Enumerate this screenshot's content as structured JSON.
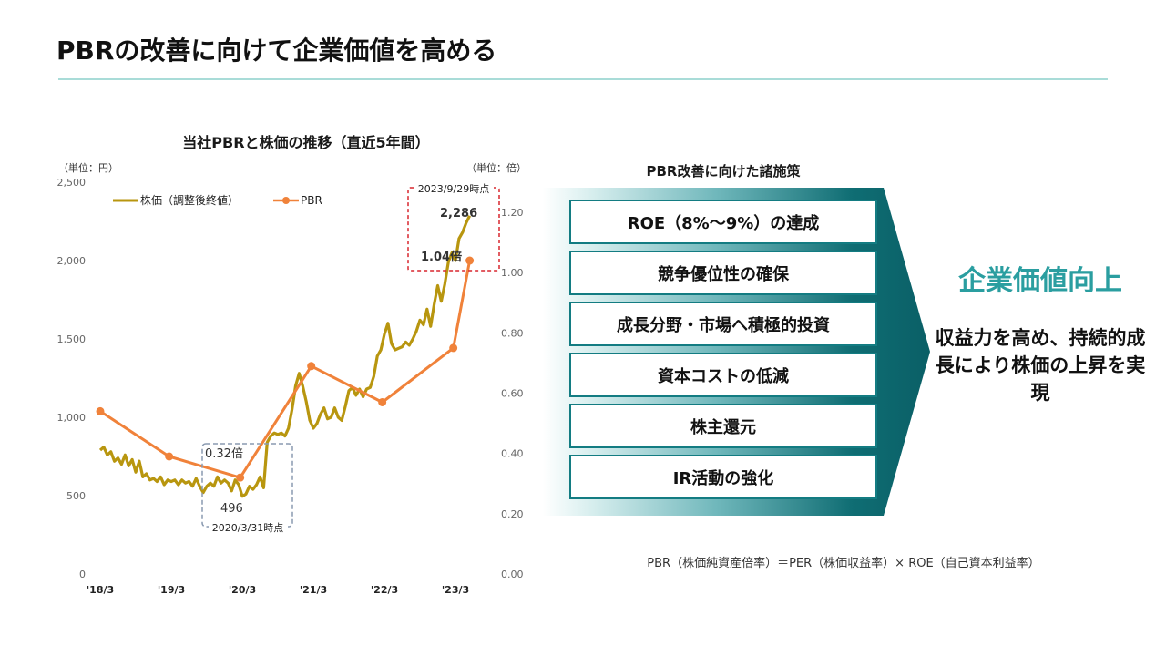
{
  "page": {
    "title": "PBRの改善に向けて企業価値を高める"
  },
  "chart_data": {
    "type": "line",
    "title": "当社PBRと株価の推移（直近5年間）",
    "y_unit_left": "（単位：円）",
    "y_unit_right": "（単位：倍）",
    "y_left": {
      "range": [
        0,
        2500
      ],
      "ticks": [
        0,
        500,
        1000,
        1500,
        2000,
        2500
      ],
      "tick_labels": [
        "0",
        "500",
        "1,000",
        "1,500",
        "2,000",
        "2,500"
      ]
    },
    "y_right": {
      "range": [
        0,
        1.3
      ],
      "ticks": [
        0,
        0.2,
        0.4,
        0.6,
        0.8,
        1.0,
        1.2
      ],
      "tick_labels": [
        "0.00",
        "0.20",
        "0.40",
        "0.60",
        "0.80",
        "1.00",
        "1.20"
      ]
    },
    "x_ticks": [
      {
        "label": "'18/3",
        "t": 0
      },
      {
        "label": "'19/3",
        "t": 1
      },
      {
        "label": "'20/3",
        "t": 2
      },
      {
        "label": "'21/3",
        "t": 3
      },
      {
        "label": "'22/3",
        "t": 4
      },
      {
        "label": "'23/3",
        "t": 5
      }
    ],
    "series": [
      {
        "name": "株価（調整後終値）",
        "color": "#b8960f",
        "axis": "left",
        "points": [
          [
            0.0,
            790
          ],
          [
            0.05,
            810
          ],
          [
            0.1,
            760
          ],
          [
            0.15,
            780
          ],
          [
            0.2,
            720
          ],
          [
            0.25,
            740
          ],
          [
            0.3,
            700
          ],
          [
            0.35,
            760
          ],
          [
            0.4,
            690
          ],
          [
            0.45,
            730
          ],
          [
            0.5,
            650
          ],
          [
            0.55,
            720
          ],
          [
            0.6,
            620
          ],
          [
            0.65,
            640
          ],
          [
            0.7,
            600
          ],
          [
            0.75,
            610
          ],
          [
            0.8,
            590
          ],
          [
            0.85,
            620
          ],
          [
            0.9,
            570
          ],
          [
            0.95,
            600
          ],
          [
            1.0,
            590
          ],
          [
            1.05,
            600
          ],
          [
            1.1,
            570
          ],
          [
            1.15,
            600
          ],
          [
            1.2,
            580
          ],
          [
            1.25,
            590
          ],
          [
            1.3,
            560
          ],
          [
            1.35,
            610
          ],
          [
            1.4,
            560
          ],
          [
            1.45,
            520
          ],
          [
            1.5,
            560
          ],
          [
            1.55,
            580
          ],
          [
            1.6,
            560
          ],
          [
            1.65,
            620
          ],
          [
            1.7,
            580
          ],
          [
            1.75,
            600
          ],
          [
            1.8,
            580
          ],
          [
            1.85,
            530
          ],
          [
            1.9,
            600
          ],
          [
            1.95,
            570
          ],
          [
            2.0,
            496
          ],
          [
            2.05,
            510
          ],
          [
            2.1,
            560
          ],
          [
            2.15,
            540
          ],
          [
            2.2,
            570
          ],
          [
            2.25,
            620
          ],
          [
            2.3,
            550
          ],
          [
            2.35,
            840
          ],
          [
            2.4,
            880
          ],
          [
            2.45,
            900
          ],
          [
            2.5,
            890
          ],
          [
            2.55,
            900
          ],
          [
            2.6,
            880
          ],
          [
            2.65,
            930
          ],
          [
            2.7,
            1050
          ],
          [
            2.75,
            1200
          ],
          [
            2.8,
            1280
          ],
          [
            2.85,
            1200
          ],
          [
            2.9,
            1100
          ],
          [
            2.95,
            980
          ],
          [
            3.0,
            930
          ],
          [
            3.05,
            960
          ],
          [
            3.1,
            1020
          ],
          [
            3.15,
            1060
          ],
          [
            3.2,
            990
          ],
          [
            3.25,
            1000
          ],
          [
            3.3,
            1060
          ],
          [
            3.35,
            1000
          ],
          [
            3.4,
            980
          ],
          [
            3.45,
            1070
          ],
          [
            3.5,
            1170
          ],
          [
            3.55,
            1190
          ],
          [
            3.6,
            1140
          ],
          [
            3.65,
            1180
          ],
          [
            3.7,
            1130
          ],
          [
            3.75,
            1180
          ],
          [
            3.8,
            1190
          ],
          [
            3.85,
            1260
          ],
          [
            3.9,
            1390
          ],
          [
            3.95,
            1430
          ],
          [
            4.0,
            1530
          ],
          [
            4.05,
            1600
          ],
          [
            4.1,
            1470
          ],
          [
            4.15,
            1430
          ],
          [
            4.2,
            1440
          ],
          [
            4.25,
            1450
          ],
          [
            4.3,
            1480
          ],
          [
            4.35,
            1460
          ],
          [
            4.4,
            1500
          ],
          [
            4.45,
            1550
          ],
          [
            4.5,
            1620
          ],
          [
            4.55,
            1590
          ],
          [
            4.6,
            1690
          ],
          [
            4.65,
            1580
          ],
          [
            4.7,
            1720
          ],
          [
            4.75,
            1840
          ],
          [
            4.8,
            1740
          ],
          [
            4.85,
            1850
          ],
          [
            4.9,
            1990
          ],
          [
            4.95,
            2050
          ],
          [
            5.0,
            2000
          ],
          [
            5.05,
            2140
          ],
          [
            5.1,
            2180
          ],
          [
            5.15,
            2240
          ],
          [
            5.2,
            2286
          ]
        ]
      },
      {
        "name": "PBR",
        "color": "#f0823a",
        "axis": "right",
        "points": [
          [
            0.0,
            0.54
          ],
          [
            0.97,
            0.39
          ],
          [
            1.97,
            0.32
          ],
          [
            2.97,
            0.69
          ],
          [
            3.97,
            0.57
          ],
          [
            4.97,
            0.75
          ],
          [
            5.2,
            1.04
          ]
        ]
      }
    ],
    "annotations": {
      "low_label_pbr": "0.32倍",
      "low_label_price": "496",
      "low_date": "2020/3/31時点",
      "high_date": "2023/9/29時点",
      "high_label_price": "2,286",
      "high_label_pbr": "1.04倍"
    },
    "legend_position": "top-left",
    "grid": false
  },
  "measures": {
    "title": "PBR改善に向けた諸施策",
    "items": [
      "ROE（8%～9%）の達成",
      "競争優位性の確保",
      "成長分野・市場へ積極的投資",
      "資本コストの低減",
      "株主還元",
      "IR活動の強化"
    ]
  },
  "outcome": {
    "title": "企業価値向上",
    "text": "収益力を高め、持続的成長により株価の上昇を実現"
  },
  "formula": "PBR（株価純資産倍率）＝PER（株価収益率）× ROE（自己資本利益率）",
  "colors": {
    "accent": "#2a9ea0",
    "banner": "#0f6d73",
    "title_rule": "#a9dcd8",
    "dashed_red": "#d9272e",
    "dashed_gray": "#8a9ab0"
  }
}
